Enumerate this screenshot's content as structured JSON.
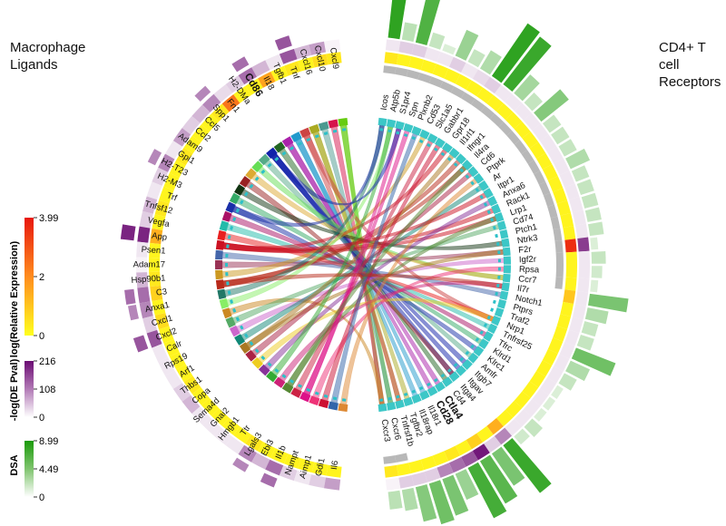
{
  "left_title": [
    "Macrophage",
    "Ligands"
  ],
  "right_title": [
    "CD4+ T cell",
    "Receptors"
  ],
  "legends": [
    {
      "title": "log(Relative Expression)",
      "max": "3.99",
      "mid": "2",
      "min": "0",
      "colors": [
        "#ffff1e",
        "#ff8c1e",
        "#e8170c"
      ]
    },
    {
      "title": "-log(DE Pval)",
      "max": "216",
      "mid": "108",
      "min": "0",
      "colors": [
        "#ffffff",
        "#b27ab6",
        "#6b0c73"
      ]
    },
    {
      "title": "DSA",
      "max": "8.99",
      "mid": "4.49",
      "min": "0",
      "colors": [
        "#ffffff",
        "#7fc46e",
        "#1a9a0a"
      ]
    }
  ],
  "colors": {
    "expression_high": "#e8170c",
    "expression_low": "#ffff1e",
    "pval_high": "#6b0c73",
    "dsa_high": "#1a9a0a",
    "receptor_segment": "#3cc7c7",
    "gray_segment": "#b8b8b8"
  },
  "ligands": [
    {
      "name": "Cxcl9",
      "color": "#66cc11",
      "expr": 0.1,
      "pval": 0.05,
      "tier": 0.15
    },
    {
      "name": "Cxcl10",
      "color": "#d6134c",
      "expr": 0.15,
      "pval": 0.4,
      "tier": 0.05
    },
    {
      "name": "Cxcl16",
      "color": "#4c9990",
      "expr": 0.05,
      "pval": 0.3,
      "tier": 0.0
    },
    {
      "name": "Tnf",
      "color": "#aaaa22",
      "expr": 0.1,
      "pval": 0.7,
      "tier": 0.1
    },
    {
      "name": "Tgfb1",
      "color": "#cc4444",
      "expr": 0.05,
      "pval": 0.1,
      "tier": 0.0
    },
    {
      "name": "Il18",
      "color": "#2299cc",
      "expr": 0.4,
      "pval": 0.3,
      "tier": 0.0
    },
    {
      "name": "Cd86",
      "color": "#aa22aa",
      "expr": 0.05,
      "pval": 0.6,
      "tier": 0.0,
      "bold": true
    },
    {
      "name": "H2-DMa",
      "color": "#226622",
      "expr": 0.05,
      "pval": 0.2,
      "tier": 0.0
    },
    {
      "name": "Fn1",
      "color": "#1122aa",
      "expr": 0.6,
      "pval": 0.15,
      "tier": 0.0
    },
    {
      "name": "Spp1",
      "color": "#55aa88",
      "expr": 0.1,
      "pval": 0.5,
      "tier": 0.0
    },
    {
      "name": "Ccl5",
      "color": "#66dd55",
      "expr": 0.05,
      "pval": 0.3,
      "tier": 0.0
    },
    {
      "name": "Ccl2",
      "color": "#ddaa33",
      "expr": 0.05,
      "pval": 0.2,
      "tier": 0.0
    },
    {
      "name": "Adam9",
      "color": "#992222",
      "expr": 0.05,
      "pval": 0.4,
      "tier": 0.0
    },
    {
      "name": "Gpi1",
      "color": "#113311",
      "expr": 0.1,
      "pval": 0.1,
      "tier": 0.0
    },
    {
      "name": "H2-T23",
      "color": "#33aa66",
      "expr": 0.05,
      "pval": 0.5,
      "tier": 0.0
    },
    {
      "name": "H2-M3",
      "color": "#1a2fa8",
      "expr": 0.05,
      "pval": 0.2,
      "tier": 0.0
    },
    {
      "name": "Trf",
      "color": "#aa1166",
      "expr": 0.05,
      "pval": 0.1,
      "tier": 0.0
    },
    {
      "name": "Tnfsf12",
      "color": "#22bbaa",
      "expr": 0.1,
      "pval": 0.3,
      "tier": 0.0
    },
    {
      "name": "Vegfa",
      "color": "#e82020",
      "expr": 0.05,
      "pval": 0.2,
      "tier": 0.0
    },
    {
      "name": "App",
      "color": "#cc1122",
      "expr": 0.35,
      "pval": 0.9,
      "tier": 0.0
    },
    {
      "name": "Psen1",
      "color": "#4466aa",
      "expr": 0.05,
      "pval": 0.1,
      "tier": 0.0
    },
    {
      "name": "Adam17",
      "color": "#993355",
      "expr": 0.05,
      "pval": 0.05,
      "tier": 0.0
    },
    {
      "name": "Hsp90b1",
      "color": "#cc9922",
      "expr": 0.1,
      "pval": 0.3,
      "tier": 0.0
    },
    {
      "name": "C3",
      "color": "#b82a1a",
      "expr": 0.2,
      "pval": 0.6,
      "tier": 0.0
    },
    {
      "name": "Anxa1",
      "color": "#227766",
      "expr": 0.05,
      "pval": 0.5,
      "tier": 0.0
    },
    {
      "name": "Cxcl1",
      "color": "#88ee66",
      "expr": 0.15,
      "pval": 0.2,
      "tier": 0.0
    },
    {
      "name": "Cxcl2",
      "color": "#cc8822",
      "expr": 0.05,
      "pval": 0.7,
      "tier": 0.0
    },
    {
      "name": "Calr",
      "color": "#55aa66",
      "expr": 0.05,
      "pval": 0.1,
      "tier": 0.0
    },
    {
      "name": "Rps19",
      "color": "#cc66cc",
      "expr": 0.05,
      "pval": 0.1,
      "tier": 0.0
    },
    {
      "name": "Arf1",
      "color": "#118877",
      "expr": 0.05,
      "pval": 0.1,
      "tier": 0.0
    },
    {
      "name": "Thbs1",
      "color": "#aa7722",
      "expr": 0.1,
      "pval": 0.2,
      "tier": 0.0
    },
    {
      "name": "Copa",
      "color": "#aa2244",
      "expr": 0.05,
      "pval": 0.3,
      "tier": 0.0
    },
    {
      "name": "Sema4d",
      "color": "#eecc22",
      "expr": 0.05,
      "pval": 0.1,
      "tier": 0.0
    },
    {
      "name": "Gnai2",
      "color": "#883399",
      "expr": 0.05,
      "pval": 0.1,
      "tier": 0.0
    },
    {
      "name": "Hmgb1",
      "color": "#33aa33",
      "expr": 0.05,
      "pval": 0.1,
      "tier": 0.0
    },
    {
      "name": "Ttr",
      "color": "#cc2277",
      "expr": 0.05,
      "pval": 0.1,
      "tier": 0.0
    },
    {
      "name": "Lgals3",
      "color": "#558833",
      "expr": 0.1,
      "pval": 0.5,
      "tier": 0.0
    },
    {
      "name": "Ebi3",
      "color": "#cc2244",
      "expr": 0.05,
      "pval": 0.3,
      "tier": 0.0
    },
    {
      "name": "Il1b",
      "color": "#dd1188",
      "expr": 0.05,
      "pval": 0.6,
      "tier": 0.0
    },
    {
      "name": "Nampt",
      "color": "#ee3377",
      "expr": 0.05,
      "pval": 0.2,
      "tier": 0.0
    },
    {
      "name": "Aimp1",
      "color": "#cc1133",
      "expr": 0.05,
      "pval": 0.1,
      "tier": 0.0
    },
    {
      "name": "Gdi1",
      "color": "#3366aa",
      "expr": 0.05,
      "pval": 0.2,
      "tier": 0.0
    },
    {
      "name": "Il6",
      "color": "#dd8833",
      "expr": 0.05,
      "pval": 0.4,
      "tier": 0.0
    }
  ],
  "receptors": [
    {
      "name": "Icos",
      "gray": true,
      "expr": 0.1,
      "pval": 0.1,
      "dsa": 0.9
    },
    {
      "name": "Atp5b",
      "gray": true,
      "expr": 0.05,
      "pval": 0.2,
      "dsa": 0.25
    },
    {
      "name": "S1pr4",
      "gray": true,
      "expr": 0.05,
      "pval": 0.2,
      "dsa": 0.75
    },
    {
      "name": "Spn",
      "gray": true,
      "expr": 0.05,
      "pval": 0.1,
      "dsa": 0.2
    },
    {
      "name": "Plxnb2",
      "gray": true,
      "expr": 0.05,
      "pval": 0.1,
      "dsa": 0.1
    },
    {
      "name": "Cd53",
      "gray": true,
      "expr": 0.05,
      "pval": 0.2,
      "dsa": 0.4
    },
    {
      "name": "Slc1a5",
      "gray": true,
      "expr": 0.05,
      "pval": 0.1,
      "dsa": 0.2
    },
    {
      "name": "Gabbr1",
      "gray": true,
      "expr": 0.05,
      "pval": 0.15,
      "dsa": 0.3
    },
    {
      "name": "Gpr18",
      "gray": true,
      "expr": 0.05,
      "pval": 0.2,
      "dsa": 0.9
    },
    {
      "name": "Il1rl1",
      "gray": true,
      "expr": 0.05,
      "pval": 0.1,
      "dsa": 0.85
    },
    {
      "name": "Ifngr1",
      "gray": true,
      "expr": 0.05,
      "pval": 0.1,
      "dsa": 0.35
    },
    {
      "name": "Il4ra",
      "gray": true,
      "expr": 0.05,
      "pval": 0.1,
      "dsa": 0.2
    },
    {
      "name": "Cd6",
      "gray": true,
      "expr": 0.05,
      "pval": 0.1,
      "dsa": 0.5
    },
    {
      "name": "Ptprk",
      "gray": true,
      "expr": 0.05,
      "pval": 0.1,
      "dsa": 0.2
    },
    {
      "name": "Ar",
      "gray": true,
      "expr": 0.05,
      "pval": 0.1,
      "dsa": 0.2
    },
    {
      "name": "Itpr1",
      "gray": true,
      "expr": 0.05,
      "pval": 0.1,
      "dsa": 0.2
    },
    {
      "name": "Anxa6",
      "gray": true,
      "expr": 0.05,
      "pval": 0.1,
      "dsa": 0.3
    },
    {
      "name": "Rack1",
      "gray": true,
      "expr": 0.05,
      "pval": 0.1,
      "dsa": 0.2
    },
    {
      "name": "Lrp1",
      "gray": true,
      "expr": 0.05,
      "pval": 0.1,
      "dsa": 0.2
    },
    {
      "name": "Cd74",
      "gray": true,
      "expr": 0.05,
      "pval": 0.1,
      "dsa": 0.2
    },
    {
      "name": "Ptch1",
      "gray": true,
      "expr": 0.05,
      "pval": 0.1,
      "dsa": 0.2
    },
    {
      "name": "Ntrk3",
      "gray": true,
      "expr": 0.05,
      "pval": 0.1,
      "dsa": 0.2
    },
    {
      "name": "F2r",
      "gray": true,
      "expr": 0.9,
      "pval": 0.8,
      "dsa": 0.1
    },
    {
      "name": "Igf2r",
      "gray": true,
      "expr": 0.05,
      "pval": 0.1,
      "dsa": 0.2
    },
    {
      "name": "Rpsa",
      "gray": true,
      "expr": 0.05,
      "pval": 0.1,
      "dsa": 0.15
    },
    {
      "name": "Ccr7",
      "gray": true,
      "expr": 0.05,
      "pval": 0.1,
      "dsa": 0.1
    },
    {
      "name": "Il7r",
      "gray": false,
      "expr": 0.25,
      "pval": 0.1,
      "dsa": 0.55
    },
    {
      "name": "Notch1",
      "gray": false,
      "expr": 0.05,
      "pval": 0.1,
      "dsa": 0.3
    },
    {
      "name": "Ptprs",
      "gray": false,
      "expr": 0.05,
      "pval": 0.1,
      "dsa": 0.2
    },
    {
      "name": "Traf2",
      "gray": false,
      "expr": 0.05,
      "pval": 0.1,
      "dsa": 0.2
    },
    {
      "name": "Nrp1",
      "gray": false,
      "expr": 0.05,
      "pval": 0.1,
      "dsa": 0.6
    },
    {
      "name": "Tnfrsf25",
      "gray": false,
      "expr": 0.05,
      "pval": 0.1,
      "dsa": 0.3
    },
    {
      "name": "Tfrc",
      "gray": false,
      "expr": 0.05,
      "pval": 0.1,
      "dsa": 0.2
    },
    {
      "name": "Klrd1",
      "gray": false,
      "expr": 0.05,
      "pval": 0.1,
      "dsa": 0.1
    },
    {
      "name": "Klrc1",
      "gray": false,
      "expr": 0.05,
      "pval": 0.1,
      "dsa": 0.1
    },
    {
      "name": "Amfr",
      "gray": false,
      "expr": 0.05,
      "pval": 0.1,
      "dsa": 0.1
    },
    {
      "name": "Itgb7",
      "gray": false,
      "expr": 0.05,
      "pval": 0.1,
      "dsa": 0.2
    },
    {
      "name": "Itgav",
      "gray": false,
      "expr": 0.05,
      "pval": 0.1,
      "dsa": 0.15
    },
    {
      "name": "Itga4",
      "gray": false,
      "expr": 0.35,
      "pval": 0.5,
      "dsa": 0.85
    },
    {
      "name": "Cd4",
      "gray": false,
      "expr": 0.05,
      "pval": 0.2,
      "dsa": 0.55
    },
    {
      "name": "Ctla4",
      "gray": false,
      "expr": 0.2,
      "pval": 0.95,
      "dsa": 0.7,
      "bold": true
    },
    {
      "name": "Cd28",
      "gray": false,
      "expr": 0.05,
      "pval": 0.7,
      "dsa": 0.8,
      "bold": true
    },
    {
      "name": "Il18r1",
      "gray": false,
      "expr": 0.1,
      "pval": 0.6,
      "dsa": 0.4
    },
    {
      "name": "Il18rap",
      "gray": false,
      "expr": 0.05,
      "pval": 0.5,
      "dsa": 0.55
    },
    {
      "name": "Tgfbr2",
      "gray": false,
      "expr": 0.05,
      "pval": 0.2,
      "dsa": 0.6
    },
    {
      "name": "Tnfrsf1b",
      "gray": false,
      "expr": 0.05,
      "pval": 0.2,
      "dsa": 0.5
    },
    {
      "name": "Cxcr6",
      "gray": true,
      "expr": 0.05,
      "pval": 0.2,
      "dsa": 0.3
    },
    {
      "name": "Cxcr3",
      "gray": true,
      "expr": 0.1,
      "pval": 0.05,
      "dsa": 0.25
    }
  ],
  "links": [
    [
      0,
      46
    ],
    [
      0,
      47
    ],
    [
      1,
      47
    ],
    [
      2,
      46
    ],
    [
      3,
      45
    ],
    [
      3,
      44
    ],
    [
      4,
      45
    ],
    [
      4,
      30
    ],
    [
      5,
      43
    ],
    [
      5,
      42
    ],
    [
      6,
      40
    ],
    [
      6,
      41
    ],
    [
      7,
      39
    ],
    [
      8,
      38
    ],
    [
      8,
      36
    ],
    [
      8,
      37
    ],
    [
      9,
      35
    ],
    [
      10,
      25
    ],
    [
      11,
      25
    ],
    [
      12,
      38
    ],
    [
      13,
      21
    ],
    [
      14,
      33
    ],
    [
      15,
      34
    ],
    [
      16,
      32
    ],
    [
      17,
      31
    ],
    [
      18,
      30
    ],
    [
      19,
      17
    ],
    [
      19,
      18
    ],
    [
      19,
      8
    ],
    [
      20,
      27
    ],
    [
      21,
      22
    ],
    [
      22,
      5
    ],
    [
      23,
      10
    ],
    [
      23,
      11
    ],
    [
      24,
      0
    ],
    [
      25,
      1
    ],
    [
      26,
      47
    ],
    [
      27,
      19
    ],
    [
      28,
      23
    ],
    [
      29,
      14
    ],
    [
      30,
      9
    ],
    [
      30,
      22
    ],
    [
      31,
      12
    ],
    [
      32,
      30
    ],
    [
      33,
      16
    ],
    [
      34,
      1
    ],
    [
      35,
      26
    ],
    [
      36,
      18
    ],
    [
      37,
      6
    ],
    [
      38,
      3
    ],
    [
      38,
      2
    ],
    [
      39,
      24
    ],
    [
      40,
      7
    ],
    [
      41,
      4
    ],
    [
      42,
      13
    ],
    [
      8,
      2
    ],
    [
      15,
      0
    ],
    [
      19,
      15
    ],
    [
      36,
      11
    ],
    [
      23,
      26
    ]
  ]
}
